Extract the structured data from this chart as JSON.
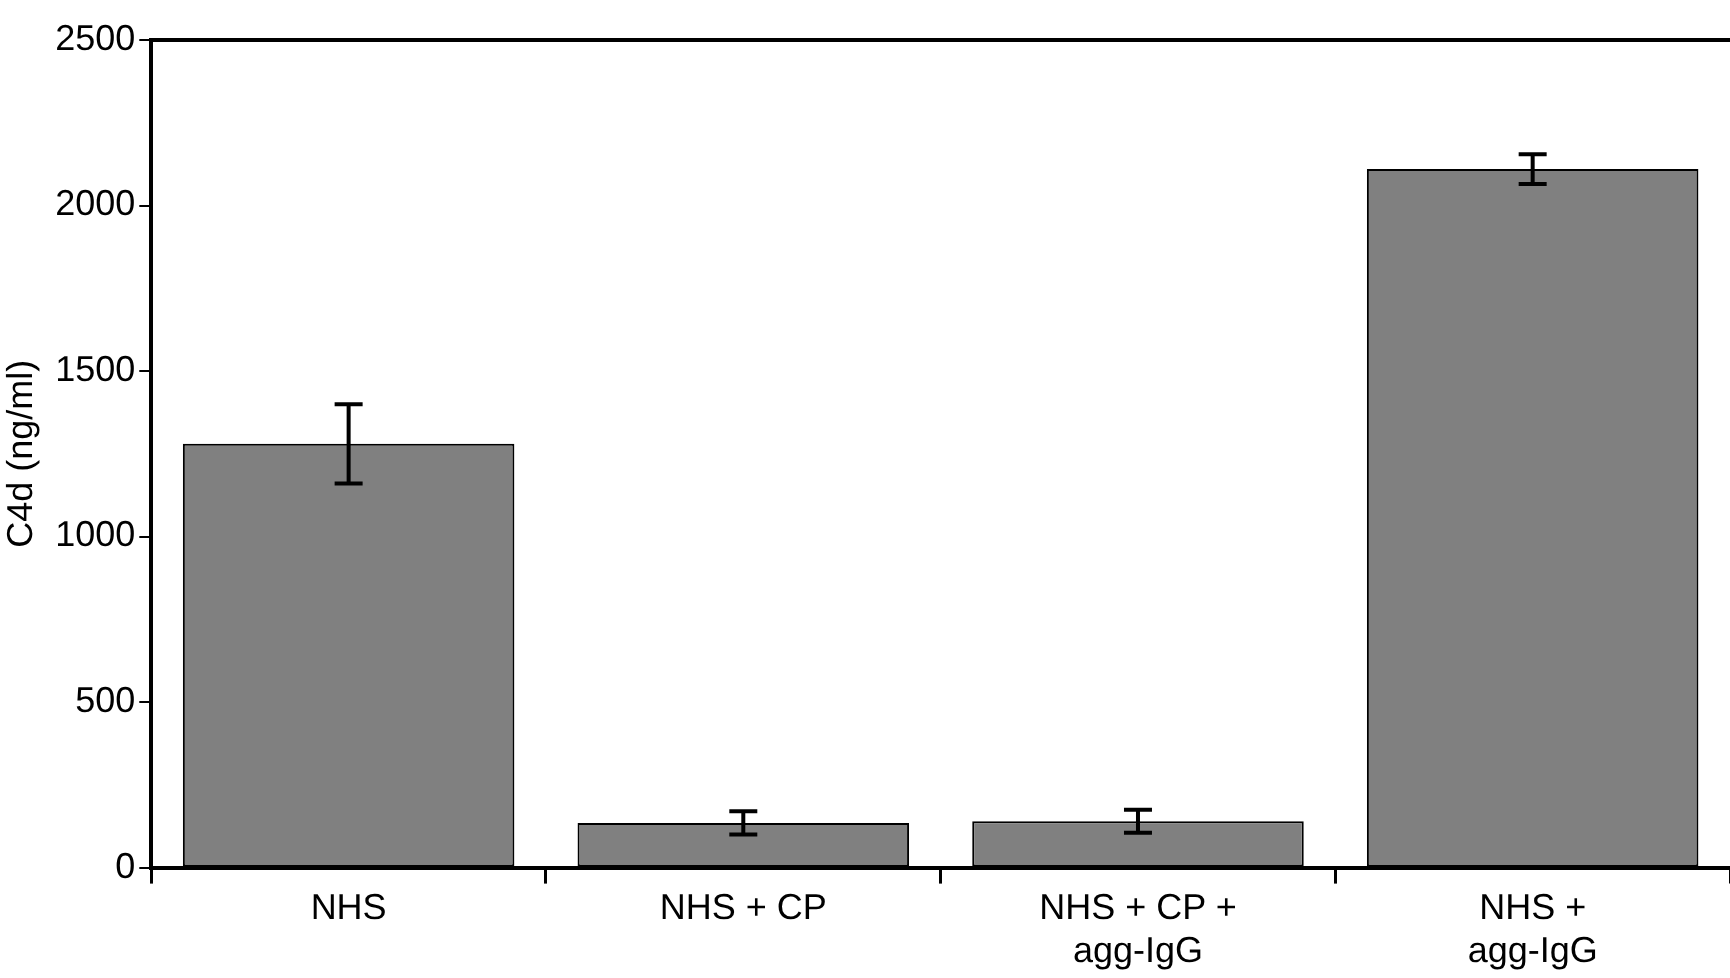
{
  "chart_data": {
    "type": "bar",
    "ylabel": "C4d (ng/ml)",
    "categories": [
      "NHS",
      "NHS + CP",
      "NHS + CP + agg-IgG",
      "NHS + agg-IgG"
    ],
    "values": [
      1280,
      135,
      140,
      2110
    ],
    "errors": [
      120,
      35,
      35,
      45
    ],
    "color": "#808080",
    "ylim": [
      0,
      2500
    ],
    "yticks": [
      0,
      500,
      1000,
      1500,
      2000,
      2500
    ],
    "grid": false,
    "legend": false
  }
}
